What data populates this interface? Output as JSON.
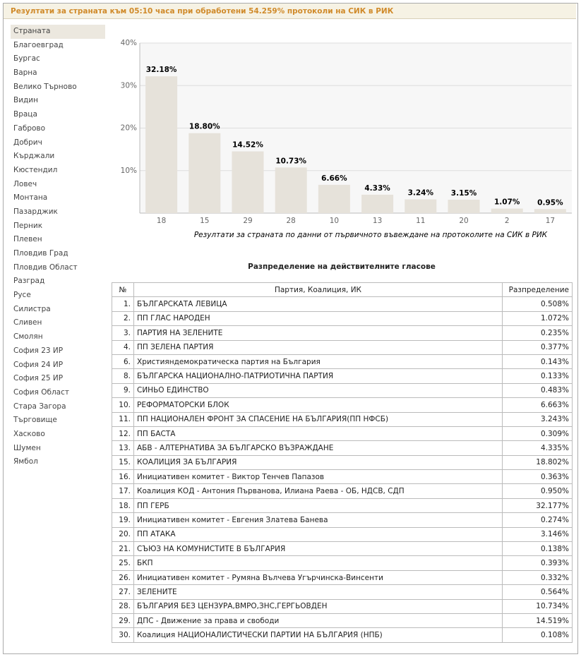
{
  "header": {
    "title": "Резултати за страната към 05:10 часа при обработени 54.259% протоколи на СИК в РИК"
  },
  "sidebar": {
    "items": [
      "Страната",
      "Благоевград",
      "Бургас",
      "Варна",
      "Велико Търново",
      "Видин",
      "Враца",
      "Габрово",
      "Добрич",
      "Кърджали",
      "Кюстендил",
      "Ловеч",
      "Монтана",
      "Пазарджик",
      "Перник",
      "Плевен",
      "Пловдив Град",
      "Пловдив Област",
      "Разград",
      "Русе",
      "Силистра",
      "Сливен",
      "Смолян",
      "София 23 ИР",
      "София 24 ИР",
      "София 25 ИР",
      "София Област",
      "Стара Загора",
      "Търговище",
      "Хасково",
      "Шумен",
      "Ямбол"
    ]
  },
  "chart_data": {
    "type": "bar",
    "caption": "Резултати за страната по данни от първичното въвеждане на протоколите на СИК в РИК",
    "categories": [
      "18",
      "15",
      "29",
      "28",
      "10",
      "13",
      "11",
      "20",
      "2",
      "17"
    ],
    "values": [
      32.18,
      18.8,
      14.52,
      10.73,
      6.66,
      4.33,
      3.24,
      3.15,
      1.07,
      0.95
    ],
    "value_labels": [
      "32.18%",
      "18.80%",
      "14.52%",
      "10.73%",
      "6.66%",
      "4.33%",
      "3.24%",
      "3.15%",
      "1.07%",
      "0.95%"
    ],
    "color": "#e6e2da",
    "ylim": [
      0,
      40
    ],
    "yticks": [
      {
        "value": 10,
        "label": "10%"
      },
      {
        "value": 20,
        "label": "20%"
      },
      {
        "value": 30,
        "label": "30%"
      },
      {
        "value": 40,
        "label": "40%"
      }
    ],
    "grid": true
  },
  "table": {
    "title": "Разпределение на действителните гласове",
    "columns": [
      "№",
      "Партия, Коалиция, ИК",
      "Разпределение"
    ],
    "rows": [
      [
        "1.",
        "БЪЛГАРСКАТА ЛЕВИЦА",
        "0.508%"
      ],
      [
        "2.",
        "ПП ГЛАС НАРОДЕН",
        "1.072%"
      ],
      [
        "3.",
        "ПАРТИЯ НА ЗЕЛЕНИТЕ",
        "0.235%"
      ],
      [
        "4.",
        "ПП ЗЕЛЕНА ПАРТИЯ",
        "0.377%"
      ],
      [
        "6.",
        "Християндемократическа партия на България",
        "0.143%"
      ],
      [
        "8.",
        "БЪЛГАРСКА НАЦИОНАЛНО-ПАТРИОТИЧНА ПАРТИЯ",
        "0.133%"
      ],
      [
        "9.",
        "СИНЬО ЕДИНСТВО",
        "0.483%"
      ],
      [
        "10.",
        "РЕФОРМАТОРСКИ БЛОК",
        "6.663%"
      ],
      [
        "11.",
        "ПП НАЦИОНАЛЕН ФРОНТ ЗА СПАСЕНИЕ НА БЪЛГАРИЯ(ПП НФСБ)",
        "3.243%"
      ],
      [
        "12.",
        "ПП БАСТА",
        "0.309%"
      ],
      [
        "13.",
        "АБВ - АЛТЕРНАТИВА ЗА БЪЛГАРСКО ВЪЗРАЖДАНЕ",
        "4.335%"
      ],
      [
        "15.",
        "КОАЛИЦИЯ ЗА БЪЛГАРИЯ",
        "18.802%"
      ],
      [
        "16.",
        "Инициативен комитет - Виктор Тенчев Папазов",
        "0.363%"
      ],
      [
        "17.",
        "Коалиция КОД - Антония Първанова, Илиана Раева - ОБ, НДСВ, СДП",
        "0.950%"
      ],
      [
        "18.",
        "ПП ГЕРБ",
        "32.177%"
      ],
      [
        "19.",
        "Инициативен комитет - Евгения Златева Банева",
        "0.274%"
      ],
      [
        "20.",
        "ПП АТАКА",
        "3.146%"
      ],
      [
        "21.",
        "СЪЮЗ НА КОМУНИСТИТЕ В БЪЛГАРИЯ",
        "0.138%"
      ],
      [
        "25.",
        "БКП",
        "0.393%"
      ],
      [
        "26.",
        "Инициативен комитет - Румяна Вълчева Угърчинска-Винсенти",
        "0.332%"
      ],
      [
        "27.",
        "ЗЕЛЕНИТЕ",
        "0.564%"
      ],
      [
        "28.",
        "БЪЛГАРИЯ БЕЗ ЦЕНЗУРА,ВМРО,ЗНС,ГЕРГЬОВДЕН",
        "10.734%"
      ],
      [
        "29.",
        "ДПС - Движение за права и свободи",
        "14.519%"
      ],
      [
        "30.",
        "Коалиция НАЦИОНАЛИСТИЧЕСКИ ПАРТИИ НА БЪЛГАРИЯ (НПБ)",
        "0.108%"
      ]
    ]
  }
}
